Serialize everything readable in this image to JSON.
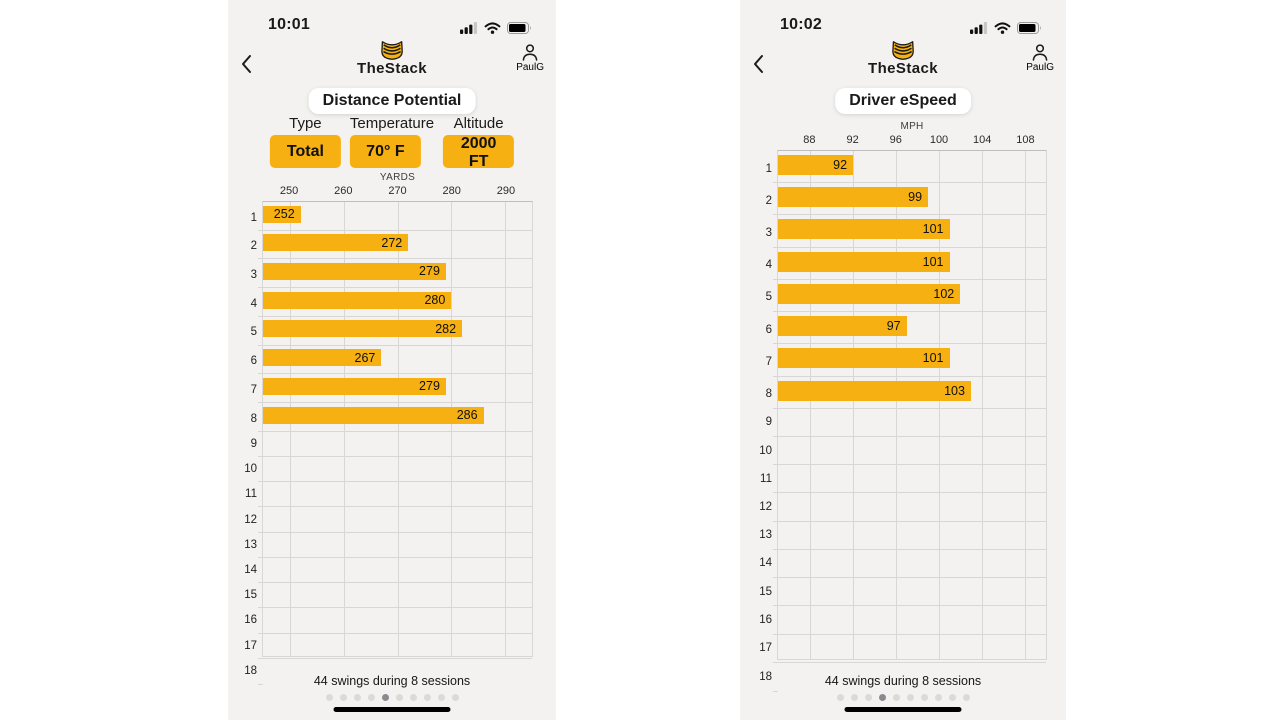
{
  "theme": {
    "gold": "#F6B012",
    "screen_bg": "#F3F2F0",
    "page_bg": "#FFFFFF",
    "grid_line": "#D8D7D5",
    "dot_inactive": "#DBDAD8",
    "dot_active": "#8A8A8E",
    "home_indicator": "#000000"
  },
  "screens": [
    {
      "status": {
        "time": "10:01",
        "icons": [
          "cellular-signal-icon",
          "wifi-icon",
          "battery-icon"
        ]
      },
      "header": {
        "back_icon": "chevron-left-icon",
        "logo_icon": "thestack-logo-icon",
        "app_name": "TheStack",
        "profile_icon": "person-icon",
        "user": "PaulG"
      },
      "title": "Distance Potential",
      "selectors": [
        {
          "label": "Type",
          "value": "Total"
        },
        {
          "label": "Temperature",
          "value": "70° F"
        },
        {
          "label": "Altitude",
          "value": "2000 FT"
        }
      ],
      "caption": "44 swings during 8 sessions",
      "pager": {
        "count": 10,
        "active_index": 4
      }
    },
    {
      "status": {
        "time": "10:02",
        "icons": [
          "cellular-signal-icon",
          "wifi-icon",
          "battery-icon"
        ]
      },
      "header": {
        "back_icon": "chevron-left-icon",
        "logo_icon": "thestack-logo-icon",
        "app_name": "TheStack",
        "profile_icon": "person-icon",
        "user": "PaulG"
      },
      "title": "Driver eSpeed",
      "caption": "44 swings during 8 sessions",
      "pager": {
        "count": 10,
        "active_index": 3
      }
    }
  ],
  "chart_data": [
    {
      "type": "bar",
      "orientation": "horizontal",
      "title": "Distance Potential",
      "axis_label": "YARDS",
      "ticks": [
        250,
        260,
        270,
        280,
        290
      ],
      "xlim": [
        245,
        295
      ],
      "grid": true,
      "categories": [
        "1",
        "2",
        "3",
        "4",
        "5",
        "6",
        "7",
        "8",
        "9",
        "10",
        "11",
        "12",
        "13",
        "14",
        "15",
        "16",
        "17",
        "18"
      ],
      "values": [
        252,
        272,
        279,
        280,
        282,
        267,
        279,
        286,
        null,
        null,
        null,
        null,
        null,
        null,
        null,
        null,
        null,
        null
      ],
      "bar_color": "#F6B012"
    },
    {
      "type": "bar",
      "orientation": "horizontal",
      "title": "Driver eSpeed",
      "axis_label": "MPH",
      "ticks": [
        88,
        92,
        96,
        100,
        104,
        108
      ],
      "xlim": [
        85,
        110
      ],
      "grid": true,
      "categories": [
        "1",
        "2",
        "3",
        "4",
        "5",
        "6",
        "7",
        "8",
        "9",
        "10",
        "11",
        "12",
        "13",
        "14",
        "15",
        "16",
        "17",
        "18"
      ],
      "values": [
        92,
        99,
        101,
        101,
        102,
        97,
        101,
        103,
        null,
        null,
        null,
        null,
        null,
        null,
        null,
        null,
        null,
        null
      ],
      "bar_color": "#F6B012"
    }
  ]
}
